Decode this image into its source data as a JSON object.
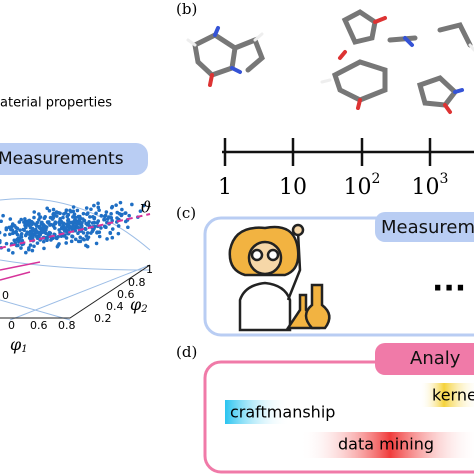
{
  "left_panel": {
    "caption": "aterial properties",
    "badge": "Measurements",
    "angle_label": "ϑ",
    "axis1": {
      "label": "φ",
      "sub": "1",
      "ticks": [
        "0",
        "0.6",
        "0.8"
      ]
    },
    "axis2": {
      "label": "φ",
      "sub": "2",
      "ticks": [
        "1",
        "0.8",
        "0.6",
        "0.4",
        "0.2"
      ]
    },
    "axis3": {
      "ticks": [
        "0"
      ]
    }
  },
  "panel_b": {
    "label": "(b)",
    "scale": [
      {
        "base": "1"
      },
      {
        "base": "10"
      },
      {
        "base": "10",
        "exp": "2"
      },
      {
        "base": "10",
        "exp": "3"
      }
    ]
  },
  "panel_c": {
    "label": "(c)",
    "badge": "Measurem",
    "ellipsis": "..."
  },
  "panel_d": {
    "label": "(d)",
    "badge": "Analy",
    "tags": [
      "kerne",
      "craftmanship",
      "data mining"
    ]
  }
}
